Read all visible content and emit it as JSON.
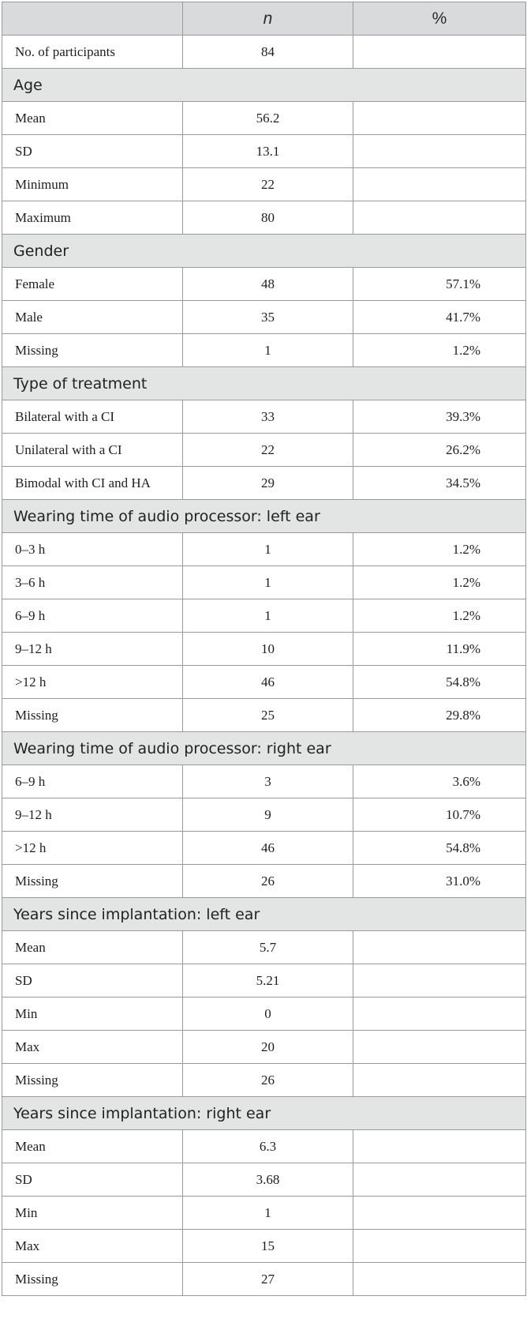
{
  "header": {
    "label_col": "",
    "n_col": "n",
    "pct_col": "%"
  },
  "rows": [
    {
      "type": "data",
      "label": "No. of participants",
      "n": "84",
      "pct": ""
    },
    {
      "type": "section",
      "label": "Age"
    },
    {
      "type": "data",
      "label": "Mean",
      "n": "56.2",
      "pct": ""
    },
    {
      "type": "data",
      "label": "SD",
      "n": "13.1",
      "pct": ""
    },
    {
      "type": "data",
      "label": "Minimum",
      "n": "22",
      "pct": ""
    },
    {
      "type": "data",
      "label": "Maximum",
      "n": "80",
      "pct": ""
    },
    {
      "type": "section",
      "label": "Gender"
    },
    {
      "type": "data",
      "label": "Female",
      "n": "48",
      "pct": "57.1%"
    },
    {
      "type": "data",
      "label": "Male",
      "n": "35",
      "pct": "41.7%"
    },
    {
      "type": "data",
      "label": "Missing",
      "n": "1",
      "pct": "1.2%"
    },
    {
      "type": "section",
      "label": "Type of treatment"
    },
    {
      "type": "data",
      "label": "Bilateral with a CI",
      "n": "33",
      "pct": "39.3%"
    },
    {
      "type": "data",
      "label": "Unilateral with a CI",
      "n": "22",
      "pct": "26.2%"
    },
    {
      "type": "data",
      "label": "Bimodal with CI and HA",
      "n": "29",
      "pct": "34.5%"
    },
    {
      "type": "section",
      "label": "Wearing time of audio processor: left ear"
    },
    {
      "type": "data",
      "label": "0–3 h",
      "n": "1",
      "pct": "1.2%"
    },
    {
      "type": "data",
      "label": "3–6 h",
      "n": "1",
      "pct": "1.2%"
    },
    {
      "type": "data",
      "label": "6–9 h",
      "n": "1",
      "pct": "1.2%"
    },
    {
      "type": "data",
      "label": "9–12 h",
      "n": "10",
      "pct": "11.9%"
    },
    {
      "type": "data",
      "label": ">12 h",
      "n": "46",
      "pct": "54.8%"
    },
    {
      "type": "data",
      "label": "Missing",
      "n": "25",
      "pct": "29.8%"
    },
    {
      "type": "section",
      "label": "Wearing time of audio processor: right ear"
    },
    {
      "type": "data",
      "label": "6–9 h",
      "n": "3",
      "pct": "3.6%"
    },
    {
      "type": "data",
      "label": "9–12 h",
      "n": "9",
      "pct": "10.7%"
    },
    {
      "type": "data",
      "label": ">12 h",
      "n": "46",
      "pct": "54.8%"
    },
    {
      "type": "data",
      "label": "Missing",
      "n": "26",
      "pct": "31.0%"
    },
    {
      "type": "section",
      "label": "Years since implantation: left ear"
    },
    {
      "type": "data",
      "label": "Mean",
      "n": "5.7",
      "pct": ""
    },
    {
      "type": "data",
      "label": "SD",
      "n": "5.21",
      "pct": ""
    },
    {
      "type": "data",
      "label": "Min",
      "n": "0",
      "pct": ""
    },
    {
      "type": "data",
      "label": "Max",
      "n": "20",
      "pct": ""
    },
    {
      "type": "data",
      "label": "Missing",
      "n": "26",
      "pct": ""
    },
    {
      "type": "section",
      "label": "Years since implantation: right ear"
    },
    {
      "type": "data",
      "label": "Mean",
      "n": "6.3",
      "pct": ""
    },
    {
      "type": "data",
      "label": "SD",
      "n": "3.68",
      "pct": ""
    },
    {
      "type": "data",
      "label": "Min",
      "n": "1",
      "pct": ""
    },
    {
      "type": "data",
      "label": "Max",
      "n": "15",
      "pct": ""
    },
    {
      "type": "data",
      "label": "Missing",
      "n": "27",
      "pct": ""
    }
  ]
}
